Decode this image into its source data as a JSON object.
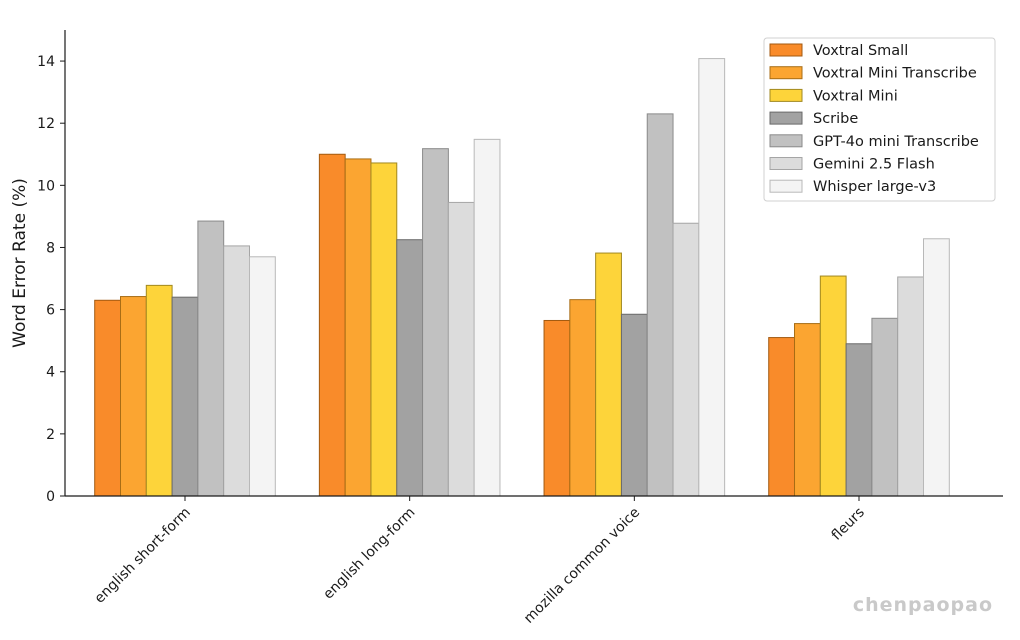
{
  "chart_data": {
    "type": "bar",
    "title": "",
    "xlabel": "",
    "ylabel": "Word Error Rate (%)",
    "ylim": [
      0,
      15
    ],
    "yticks": [
      0,
      2,
      4,
      6,
      8,
      10,
      12,
      14
    ],
    "grid": false,
    "legend_position": "top-right",
    "categories": [
      "english short-form",
      "english long-form",
      "mozilla common voice",
      "fleurs"
    ],
    "series": [
      {
        "name": "Voxtral Small",
        "color": "#f98b2a",
        "edge": "#a35a10",
        "values": [
          6.3,
          11.0,
          5.65,
          5.1
        ]
      },
      {
        "name": "Voxtral Mini Transcribe",
        "color": "#fba531",
        "edge": "#a86d15",
        "values": [
          6.42,
          10.85,
          6.32,
          5.55
        ]
      },
      {
        "name": "Voxtral Mini",
        "color": "#fdd43a",
        "edge": "#a18820",
        "values": [
          6.78,
          10.72,
          7.82,
          7.08
        ]
      },
      {
        "name": "Scribe",
        "color": "#a2a2a2",
        "edge": "#6a6a6a",
        "values": [
          6.4,
          8.25,
          5.85,
          4.9
        ]
      },
      {
        "name": "GPT-4o mini Transcribe",
        "color": "#c1c1c1",
        "edge": "#8a8a8a",
        "values": [
          8.85,
          11.18,
          12.3,
          5.72
        ]
      },
      {
        "name": "Gemini 2.5 Flash",
        "color": "#dcdcdc",
        "edge": "#a5a5a5",
        "values": [
          8.05,
          9.45,
          8.78,
          7.05
        ]
      },
      {
        "name": "Whisper large-v3",
        "color": "#f4f4f4",
        "edge": "#b8b8b8",
        "values": [
          7.7,
          11.48,
          14.08,
          8.28
        ]
      }
    ]
  },
  "watermark": "chenpaopao"
}
